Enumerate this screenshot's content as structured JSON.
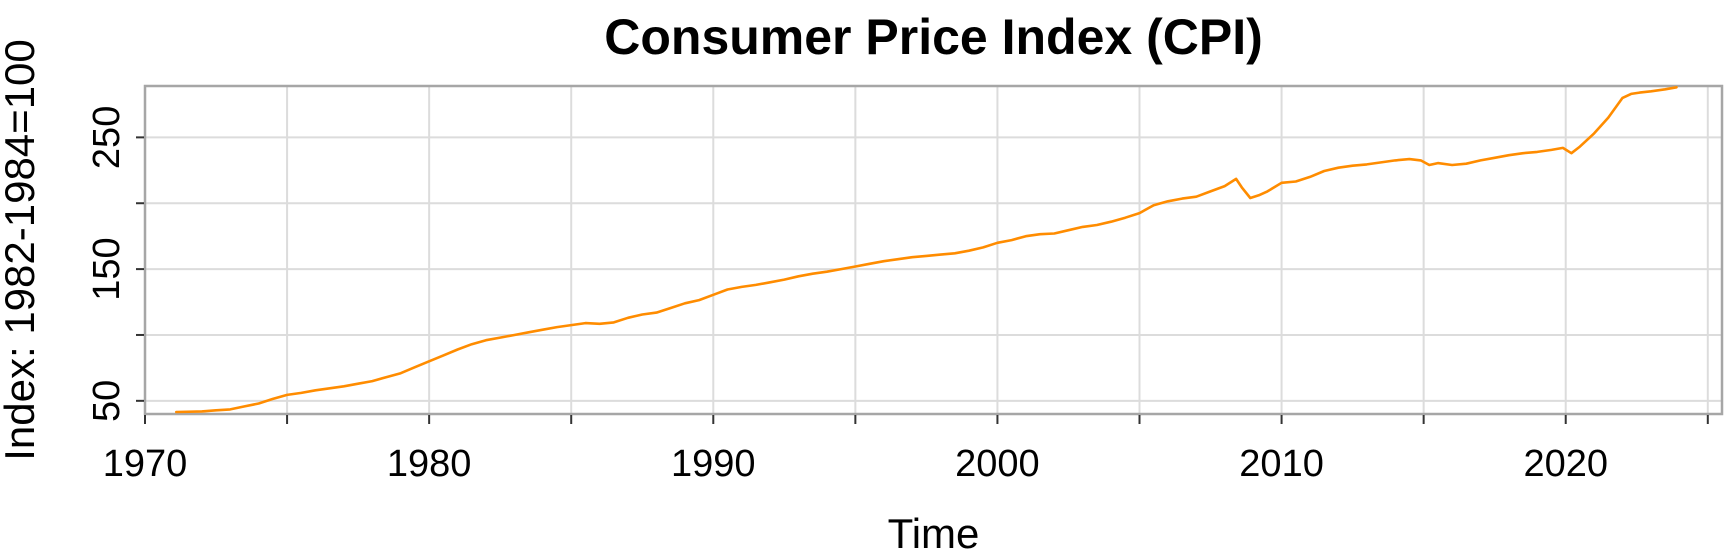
{
  "chart_data": {
    "type": "line",
    "title": "Consumer Price Index (CPI)",
    "xlabel": "Time",
    "ylabel": "Index: 1982-1984=100",
    "xlim": [
      1970,
      2025.5
    ],
    "ylim": [
      40,
      289
    ],
    "x_ticks": [
      1970,
      1980,
      1990,
      2000,
      2010,
      2020
    ],
    "x_tick_labels": [
      "1970",
      "1980",
      "1990",
      "2000",
      "2010",
      "2020"
    ],
    "x_minor_ticks": [
      1975,
      1985,
      1995,
      2005,
      2015,
      2025
    ],
    "y_ticks": [
      50,
      150,
      250
    ],
    "y_tick_labels": [
      "50",
      "150",
      "250"
    ],
    "y_minor_grid": [
      100,
      200
    ],
    "grid": true,
    "series": [
      {
        "color": "#ff8c00",
        "x": [
          1971.1,
          1972.0,
          1972.5,
          1973.0,
          1973.5,
          1974.0,
          1974.5,
          1975.0,
          1975.5,
          1976.0,
          1976.5,
          1977.0,
          1977.5,
          1978.0,
          1978.5,
          1979.0,
          1979.5,
          1980.0,
          1980.5,
          1981.0,
          1981.5,
          1982.0,
          1982.5,
          1983.0,
          1983.5,
          1984.0,
          1984.5,
          1985.0,
          1985.5,
          1986.0,
          1986.5,
          1987.0,
          1987.5,
          1988.0,
          1988.5,
          1989.0,
          1989.5,
          1990.0,
          1990.5,
          1991.0,
          1991.5,
          1992.0,
          1992.5,
          1993.0,
          1993.5,
          1994.0,
          1994.5,
          1995.0,
          1995.5,
          1996.0,
          1996.5,
          1997.0,
          1997.5,
          1998.0,
          1998.5,
          1999.0,
          1999.5,
          2000.0,
          2000.5,
          2001.0,
          2001.5,
          2002.0,
          2002.5,
          2003.0,
          2003.5,
          2004.0,
          2004.5,
          2005.0,
          2005.5,
          2006.0,
          2006.5,
          2007.0,
          2007.5,
          2008.0,
          2008.4,
          2008.6,
          2008.9,
          2009.2,
          2009.5,
          2010.0,
          2010.5,
          2011.0,
          2011.5,
          2012.0,
          2012.5,
          2013.0,
          2013.5,
          2014.0,
          2014.5,
          2014.9,
          2015.2,
          2015.5,
          2016.0,
          2016.5,
          2017.0,
          2017.5,
          2018.0,
          2018.5,
          2019.0,
          2019.5,
          2019.9,
          2020.2,
          2020.5,
          2021.0,
          2021.5,
          2022.0,
          2022.3,
          2022.6,
          2023.0,
          2023.5,
          2023.9
        ],
        "values": [
          41.5,
          42.0,
          42.8,
          43.5,
          45.8,
          48.0,
          51.5,
          54.5,
          56.0,
          58.0,
          59.5,
          61.0,
          63.0,
          65.0,
          68.0,
          71.0,
          75.5,
          80.0,
          84.5,
          89.0,
          93.0,
          96.0,
          98.0,
          100.0,
          102.0,
          104.0,
          106.0,
          107.5,
          109.0,
          108.5,
          109.5,
          113.0,
          115.5,
          117.0,
          120.5,
          124.0,
          126.5,
          130.5,
          134.5,
          136.5,
          138.0,
          140.0,
          142.0,
          144.5,
          146.5,
          148.0,
          150.0,
          152.0,
          154.0,
          156.0,
          157.5,
          159.0,
          160.0,
          161.0,
          162.0,
          164.0,
          166.5,
          170.0,
          172.0,
          175.0,
          176.5,
          177.0,
          179.5,
          182.0,
          183.5,
          186.0,
          189.0,
          192.5,
          198.5,
          201.5,
          203.5,
          205.0,
          209.0,
          213.0,
          218.5,
          212.0,
          204.0,
          206.0,
          209.0,
          215.5,
          216.5,
          220.0,
          224.5,
          227.0,
          228.5,
          229.5,
          231.0,
          232.5,
          233.5,
          232.5,
          229.0,
          230.5,
          229.0,
          230.0,
          232.5,
          234.5,
          236.5,
          238.0,
          239.0,
          240.5,
          242.0,
          238.0,
          243.0,
          253.0,
          265.0,
          280.0,
          283.0,
          284.0,
          285.0,
          286.5,
          288.0
        ]
      }
    ]
  }
}
